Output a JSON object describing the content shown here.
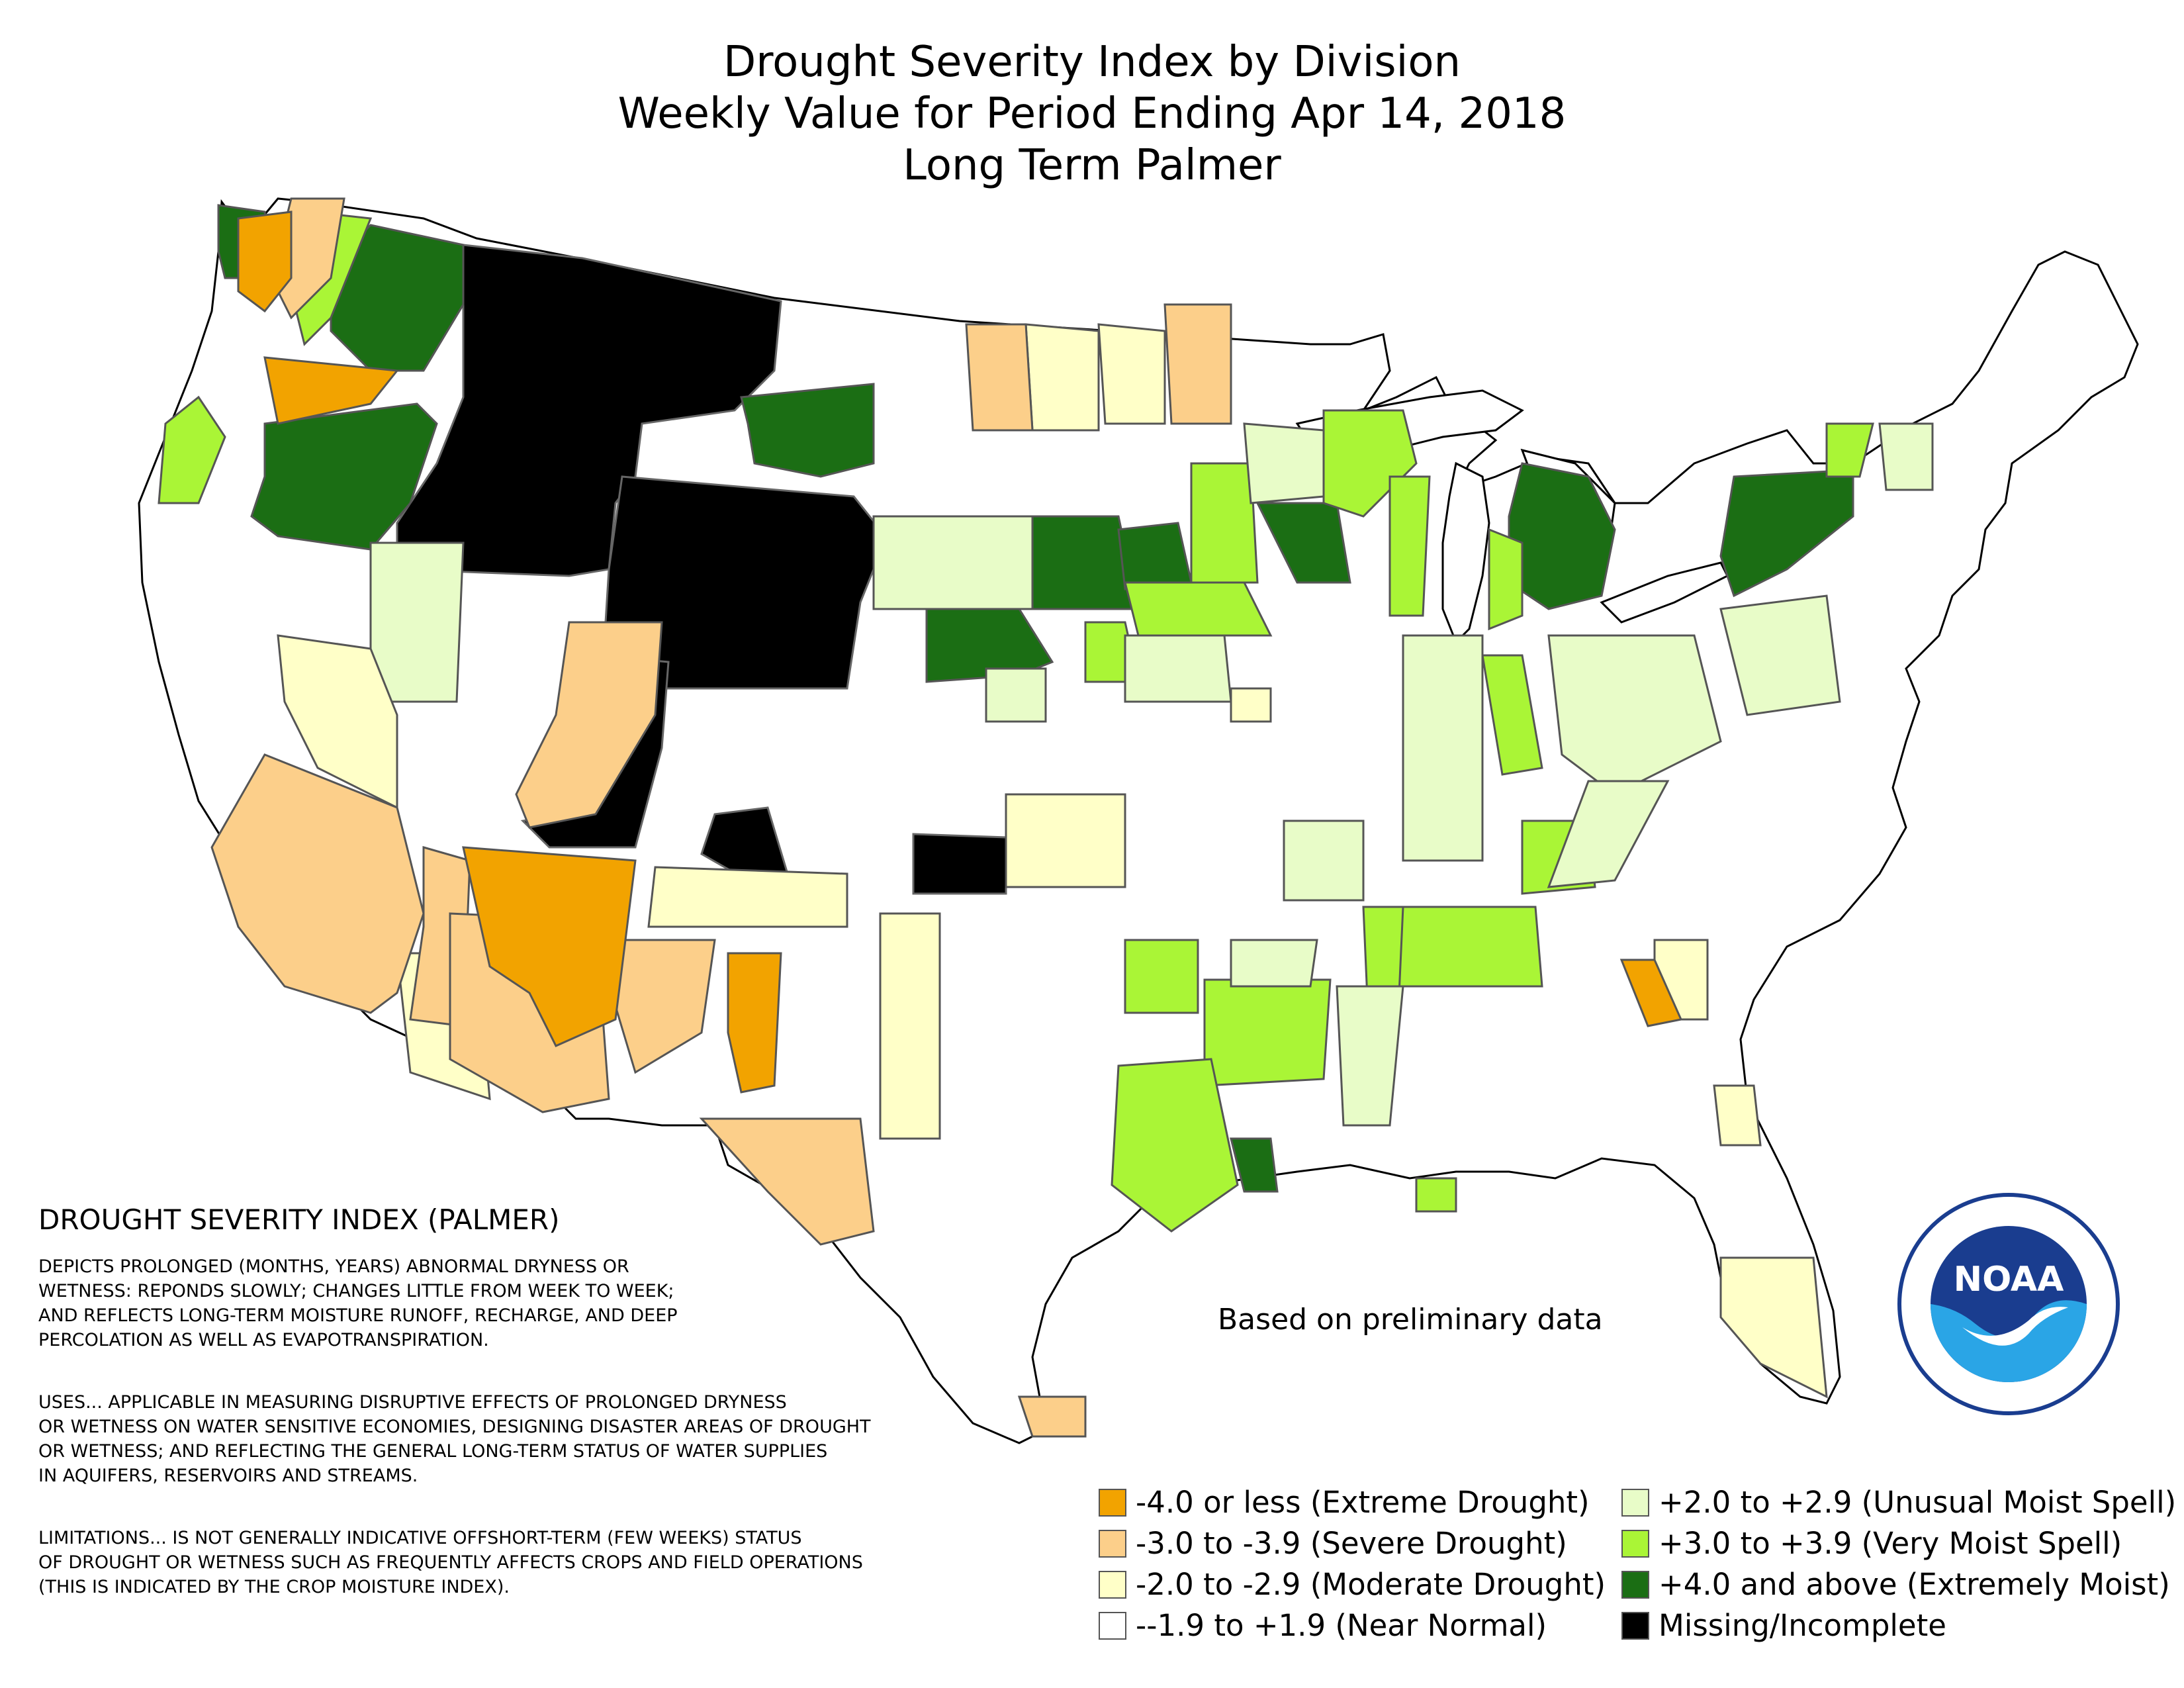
{
  "title": {
    "line1": "Drought Severity Index by Division",
    "line2": "Weekly Value for Period Ending Apr 14, 2018",
    "line3": "Long Term Palmer"
  },
  "legend_text": {
    "heading": "DROUGHT SEVERITY INDEX (PALMER)",
    "depicts": "DEPICTS PROLONGED (MONTHS, YEARS) ABNORMAL DRYNESS OR\nWETNESS: REPONDS SLOWLY; CHANGES LITTLE FROM WEEK TO WEEK;\nAND REFLECTS LONG-TERM MOISTURE RUNOFF, RECHARGE, AND DEEP\nPERCOLATION AS WELL AS EVAPOTRANSPIRATION.",
    "uses": "USES... APPLICABLE IN MEASURING DISRUPTIVE EFFECTS OF PROLONGED DRYNESS\nOR WETNESS ON WATER SENSITIVE ECONOMIES, DESIGNING DISASTER AREAS OF DROUGHT\nOR WETNESS; AND REFLECTING THE GENERAL LONG-TERM STATUS OF WATER SUPPLIES\nIN AQUIFERS, RESERVOIRS AND STREAMS.",
    "limitations": "LIMITATIONS... IS NOT GENERALLY INDICATIVE OFFSHORT-TERM (FEW WEEKS) STATUS\nOF DROUGHT OR WETNESS SUCH AS FREQUENTLY AFFECTS CROPS AND FIELD OPERATIONS\n(THIS IS INDICATED BY THE CROP MOISTURE INDEX)."
  },
  "note": "Based on preliminary data",
  "key": [
    {
      "label": "-4.0 or less (Extreme Drought)",
      "color": "#f2a300"
    },
    {
      "label": "-3.0 to -3.9 (Severe Drought)",
      "color": "#fccf8a"
    },
    {
      "label": "-2.0 to -2.9 (Moderate Drought)",
      "color": "#ffffc8"
    },
    {
      "label": "--1.9 to +1.9 (Near Normal)",
      "color": "#ffffff"
    },
    {
      "label": "+2.0 to +2.9 (Unusual Moist Spell)",
      "color": "#e8fcc8"
    },
    {
      "label": "+3.0 to +3.9 (Very Moist Spell)",
      "color": "#aaf536"
    },
    {
      "label": "+4.0 and above (Extremely Moist)",
      "color": "#1b6e14"
    },
    {
      "label": "Missing/Incomplete",
      "color": "#000000"
    }
  ],
  "logo": {
    "text": "NOAA",
    "icon": "noaa-seal-icon"
  }
}
